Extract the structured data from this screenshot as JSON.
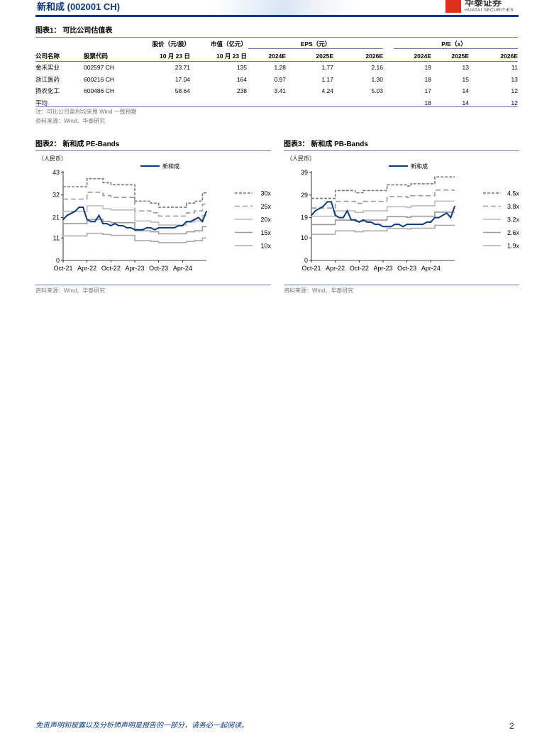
{
  "header": {
    "title": "新和成 (002001 CH)",
    "logo_cn": "华泰证券",
    "logo_en": "HUATAI SECURITIES",
    "accent": "#0c3a7d",
    "logo_color": "#e0301e"
  },
  "table1": {
    "caption": "图表1：  可比公司估值表",
    "group_headers": {
      "price": "股价（元/股）",
      "mcap": "市值（亿元）",
      "eps": "EPS（元）",
      "pe": "P/E（x）"
    },
    "columns": [
      "公司名称",
      "股票代码",
      "10 月 23 日",
      "10 月 23 日",
      "2024E",
      "2025E",
      "2026E",
      "2024E",
      "2025E",
      "2026E"
    ],
    "rows": [
      [
        "金禾实业",
        "002597 CH",
        "23.71",
        "135",
        "1.28",
        "1.77",
        "2.16",
        "19",
        "13",
        "11"
      ],
      [
        "浙江医药",
        "600216 CH",
        "17.04",
        "164",
        "0.97",
        "1.17",
        "1.30",
        "18",
        "15",
        "13"
      ],
      [
        "扬农化工",
        "600486 CH",
        "58.64",
        "238",
        "3.41",
        "4.24",
        "5.03",
        "17",
        "14",
        "12"
      ],
      [
        "平均",
        "",
        "",
        "",
        "",
        "",
        "",
        "18",
        "14",
        "12"
      ]
    ],
    "note": "注：可比公司盈利均采用 Wind 一致预期",
    "source": "资料来源：Wind，华泰研究"
  },
  "chart_data": [
    {
      "type": "line",
      "caption": "图表2：  新和成 PE-Bands",
      "unit_label": "（人民币）",
      "ylim": [
        0,
        43
      ],
      "yticks": [
        0,
        11,
        21,
        32,
        43
      ],
      "xticks": [
        "Oct-21",
        "Apr-22",
        "Oct-22",
        "Apr-23",
        "Oct-23",
        "Apr-24"
      ],
      "x_range": [
        "2021-10",
        "2024-10"
      ],
      "series": [
        {
          "name": "新和成",
          "color": "#0c3a7d",
          "x": [
            "2021-10",
            "2021-11",
            "2021-12",
            "2022-01",
            "2022-02",
            "2022-03",
            "2022-04",
            "2022-05",
            "2022-06",
            "2022-07",
            "2022-08",
            "2022-09",
            "2022-10",
            "2022-11",
            "2022-12",
            "2023-01",
            "2023-02",
            "2023-03",
            "2023-04",
            "2023-05",
            "2023-06",
            "2023-07",
            "2023-08",
            "2023-09",
            "2023-10",
            "2023-11",
            "2023-12",
            "2024-01",
            "2024-02",
            "2024-03",
            "2024-04",
            "2024-05",
            "2024-06",
            "2024-07",
            "2024-08",
            "2024-09",
            "2024-10"
          ],
          "values": [
            20,
            22,
            23,
            24,
            26,
            26,
            20,
            19,
            19,
            22,
            18,
            18,
            17,
            18,
            17,
            17,
            16,
            16,
            15,
            15,
            15,
            16,
            16,
            15,
            16,
            16,
            16,
            16,
            16,
            17,
            17,
            19,
            19,
            20,
            21,
            19,
            24
          ]
        }
      ],
      "bands": [
        {
          "name": "30x",
          "style": "short-dash",
          "color": "#777777",
          "steps": [
            [
              "2021-10",
              36
            ],
            [
              "2022-04",
              40
            ],
            [
              "2022-08",
              38
            ],
            [
              "2022-10",
              37
            ],
            [
              "2023-04",
              29
            ],
            [
              "2023-08",
              28
            ],
            [
              "2023-10",
              26
            ],
            [
              "2024-05",
              28
            ],
            [
              "2024-07",
              29
            ],
            [
              "2024-09",
              33
            ]
          ]
        },
        {
          "name": "25x",
          "style": "long-dash",
          "color": "#999999",
          "steps": [
            [
              "2021-10",
              30
            ],
            [
              "2022-04",
              33.3
            ],
            [
              "2022-08",
              31.7
            ],
            [
              "2022-10",
              30.8
            ],
            [
              "2023-04",
              24.2
            ],
            [
              "2023-08",
              23.3
            ],
            [
              "2023-10",
              21.7
            ],
            [
              "2024-05",
              23.3
            ],
            [
              "2024-07",
              24.2
            ],
            [
              "2024-09",
              27.5
            ]
          ]
        },
        {
          "name": "20x",
          "style": "solid",
          "color": "#bbbbbb",
          "steps": [
            [
              "2021-10",
              24
            ],
            [
              "2022-04",
              26.7
            ],
            [
              "2022-08",
              25.3
            ],
            [
              "2022-10",
              24.7
            ],
            [
              "2023-04",
              19.3
            ],
            [
              "2023-08",
              18.7
            ],
            [
              "2023-10",
              17.3
            ],
            [
              "2024-05",
              18.7
            ],
            [
              "2024-07",
              19.3
            ],
            [
              "2024-09",
              22
            ]
          ]
        },
        {
          "name": "15x",
          "style": "solid",
          "color": "#999999",
          "steps": [
            [
              "2021-10",
              18
            ],
            [
              "2022-04",
              20
            ],
            [
              "2022-08",
              19
            ],
            [
              "2022-10",
              18.5
            ],
            [
              "2023-04",
              14.5
            ],
            [
              "2023-08",
              14
            ],
            [
              "2023-10",
              13
            ],
            [
              "2024-05",
              14
            ],
            [
              "2024-07",
              14.5
            ],
            [
              "2024-09",
              16.5
            ]
          ]
        },
        {
          "name": "10x",
          "style": "solid",
          "color": "#aaaaaa",
          "steps": [
            [
              "2021-10",
              12
            ],
            [
              "2022-04",
              13.3
            ],
            [
              "2022-08",
              12.7
            ],
            [
              "2022-10",
              12.3
            ],
            [
              "2023-04",
              9.7
            ],
            [
              "2023-08",
              9.3
            ],
            [
              "2023-10",
              8.7
            ],
            [
              "2024-05",
              9.3
            ],
            [
              "2024-07",
              9.7
            ],
            [
              "2024-09",
              11
            ]
          ]
        }
      ],
      "source": "资料来源：Wind、华泰研究"
    },
    {
      "type": "line",
      "caption": "图表3：  新和成 PB-Bands",
      "unit_label": "（人民币）",
      "ylim": [
        0,
        39
      ],
      "yticks": [
        0,
        10,
        19,
        29,
        39
      ],
      "xticks": [
        "Oct-21",
        "Apr-22",
        "Oct-22",
        "Apr-23",
        "Oct-23",
        "Apr-24"
      ],
      "x_range": [
        "2021-10",
        "2024-10"
      ],
      "series": [
        {
          "name": "新和成",
          "color": "#0c3a7d",
          "x": [
            "2021-10",
            "2021-11",
            "2021-12",
            "2022-01",
            "2022-02",
            "2022-03",
            "2022-04",
            "2022-05",
            "2022-06",
            "2022-07",
            "2022-08",
            "2022-09",
            "2022-10",
            "2022-11",
            "2022-12",
            "2023-01",
            "2023-02",
            "2023-03",
            "2023-04",
            "2023-05",
            "2023-06",
            "2023-07",
            "2023-08",
            "2023-09",
            "2023-10",
            "2023-11",
            "2023-12",
            "2024-01",
            "2024-02",
            "2024-03",
            "2024-04",
            "2024-05",
            "2024-06",
            "2024-07",
            "2024-08",
            "2024-09",
            "2024-10"
          ],
          "values": [
            20,
            22,
            23,
            24,
            26,
            26,
            20,
            19,
            19,
            22,
            18,
            18,
            17,
            18,
            17,
            17,
            16,
            16,
            15,
            15,
            15,
            16,
            16,
            15,
            16,
            16,
            16,
            16,
            16,
            17,
            17,
            19,
            19,
            20,
            21,
            19,
            24
          ]
        }
      ],
      "bands": [
        {
          "name": "4.5x",
          "style": "short-dash",
          "color": "#777777",
          "steps": [
            [
              "2021-10",
              27.5
            ],
            [
              "2022-04",
              31
            ],
            [
              "2022-09",
              30
            ],
            [
              "2022-11",
              31
            ],
            [
              "2023-05",
              33.5
            ],
            [
              "2023-10",
              33
            ],
            [
              "2023-11",
              34
            ],
            [
              "2024-05",
              37
            ]
          ]
        },
        {
          "name": "3.8x",
          "style": "long-dash",
          "color": "#999999",
          "steps": [
            [
              "2021-10",
              23.2
            ],
            [
              "2022-04",
              26.2
            ],
            [
              "2022-09",
              25.3
            ],
            [
              "2022-11",
              26.2
            ],
            [
              "2023-05",
              28.3
            ],
            [
              "2023-10",
              27.9
            ],
            [
              "2023-11",
              28.7
            ],
            [
              "2024-05",
              31.2
            ]
          ]
        },
        {
          "name": "3.2x",
          "style": "solid",
          "color": "#bbbbbb",
          "steps": [
            [
              "2021-10",
              19.6
            ],
            [
              "2022-04",
              22
            ],
            [
              "2022-09",
              21.3
            ],
            [
              "2022-11",
              22
            ],
            [
              "2023-05",
              23.8
            ],
            [
              "2023-10",
              23.5
            ],
            [
              "2023-11",
              24.2
            ],
            [
              "2024-05",
              26.3
            ]
          ]
        },
        {
          "name": "2.6x",
          "style": "solid",
          "color": "#999999",
          "steps": [
            [
              "2021-10",
              15.9
            ],
            [
              "2022-04",
              17.9
            ],
            [
              "2022-09",
              17.3
            ],
            [
              "2022-11",
              17.9
            ],
            [
              "2023-05",
              19.4
            ],
            [
              "2023-10",
              19.1
            ],
            [
              "2023-11",
              19.6
            ],
            [
              "2024-05",
              21.4
            ]
          ]
        },
        {
          "name": "1.9x",
          "style": "solid",
          "color": "#aaaaaa",
          "steps": [
            [
              "2021-10",
              11.6
            ],
            [
              "2022-04",
              13.1
            ],
            [
              "2022-09",
              12.7
            ],
            [
              "2022-11",
              13.1
            ],
            [
              "2023-05",
              14.1
            ],
            [
              "2023-10",
              13.9
            ],
            [
              "2023-11",
              14.3
            ],
            [
              "2024-05",
              15.6
            ]
          ]
        }
      ],
      "source": "资料来源：Wind、华泰研究"
    }
  ],
  "footer": {
    "disclaimer": "免责声明和披露以及分析师声明是报告的一部分，请务必一起阅读。",
    "page": "2"
  }
}
